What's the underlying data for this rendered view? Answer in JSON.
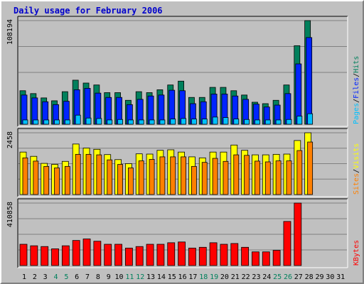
{
  "title": "Daily usage for February 2006",
  "colors": {
    "hits": "#00805c",
    "files": "#0024ff",
    "pages": "#00c0ff",
    "visits": "#ffff00",
    "sites": "#ff8000",
    "kbytes": "#ff0000",
    "weekend_label": "#00805c"
  },
  "chart_data": [
    {
      "type": "bar",
      "title": "Daily usage for February 2006",
      "ymax_label": "108194",
      "ylim": [
        0,
        108194
      ],
      "right_labels": [
        "Pages",
        "Files",
        "Hits"
      ],
      "categories": [
        "1",
        "2",
        "3",
        "4",
        "5",
        "6",
        "7",
        "8",
        "9",
        "10",
        "11",
        "12",
        "13",
        "14",
        "15",
        "16",
        "17",
        "18",
        "19",
        "20",
        "21",
        "22",
        "23",
        "24",
        "25",
        "26",
        "27",
        "28",
        "29",
        "30",
        "31"
      ],
      "series": [
        {
          "name": "Hits",
          "values": [
            35000,
            32000,
            27500,
            24500,
            34000,
            46000,
            43000,
            41000,
            33000,
            33000,
            25000,
            34000,
            33000,
            36000,
            41000,
            45000,
            28000,
            28000,
            38500,
            38500,
            35000,
            30500,
            23000,
            21500,
            25000,
            41000,
            82000,
            108194,
            0,
            0,
            0
          ]
        },
        {
          "name": "Files",
          "values": [
            30500,
            27500,
            23500,
            20500,
            24000,
            36000,
            37500,
            32500,
            28000,
            28000,
            20500,
            26000,
            29500,
            30500,
            35500,
            35000,
            21500,
            23500,
            31500,
            31500,
            29500,
            26000,
            21000,
            18000,
            20000,
            32000,
            63000,
            90500,
            0,
            0,
            0
          ]
        },
        {
          "name": "Pages",
          "values": [
            4500,
            4500,
            4500,
            4500,
            4500,
            9500,
            6500,
            6000,
            4500,
            5000,
            4500,
            4500,
            4500,
            4500,
            5500,
            6000,
            5500,
            5500,
            7500,
            7000,
            5500,
            5000,
            4500,
            4500,
            4500,
            5000,
            8500,
            11000,
            0,
            0,
            0
          ]
        }
      ]
    },
    {
      "type": "bar",
      "ymax_label": "2458",
      "ylim": [
        0,
        2458
      ],
      "right_labels": [
        "Sites",
        "Visits"
      ],
      "categories": [
        "1",
        "2",
        "3",
        "4",
        "5",
        "6",
        "7",
        "8",
        "9",
        "10",
        "11",
        "12",
        "13",
        "14",
        "15",
        "16",
        "17",
        "18",
        "19",
        "20",
        "21",
        "22",
        "23",
        "24",
        "25",
        "26",
        "27",
        "28",
        "29",
        "30",
        "31"
      ],
      "series": [
        {
          "name": "Visits",
          "values": [
            1690,
            1520,
            1240,
            1200,
            1320,
            2010,
            1850,
            1800,
            1590,
            1390,
            1230,
            1620,
            1610,
            1760,
            1780,
            1690,
            1500,
            1460,
            1690,
            1690,
            1970,
            1760,
            1580,
            1580,
            1600,
            1610,
            2150,
            2458,
            0,
            0,
            0
          ]
        },
        {
          "name": "Sites",
          "values": [
            1460,
            1330,
            1120,
            1060,
            1120,
            1600,
            1600,
            1580,
            1380,
            1200,
            1060,
            1340,
            1400,
            1500,
            1500,
            1500,
            1120,
            1280,
            1440,
            1320,
            1580,
            1560,
            1330,
            1300,
            1340,
            1340,
            1750,
            2090,
            0,
            0,
            0
          ]
        }
      ]
    },
    {
      "type": "bar",
      "ymax_label": "410858",
      "ylim": [
        0,
        410858
      ],
      "right_labels": [
        "KBytes"
      ],
      "categories": [
        "1",
        "2",
        "3",
        "4",
        "5",
        "6",
        "7",
        "8",
        "9",
        "10",
        "11",
        "12",
        "13",
        "14",
        "15",
        "16",
        "17",
        "18",
        "19",
        "20",
        "21",
        "22",
        "23",
        "24",
        "25",
        "26",
        "27",
        "28",
        "29",
        "30",
        "31"
      ],
      "series": [
        {
          "name": "KBytes",
          "values": [
            140000,
            130000,
            125000,
            110000,
            130000,
            165000,
            175000,
            160000,
            140000,
            140000,
            115000,
            125000,
            140000,
            140000,
            150000,
            155000,
            115000,
            120000,
            150000,
            140000,
            145000,
            120000,
            90000,
            90000,
            100000,
            290000,
            410858,
            0,
            0,
            0,
            0
          ]
        }
      ]
    }
  ],
  "weekend_days": [
    "4",
    "5",
    "11",
    "12",
    "18",
    "19",
    "25",
    "26"
  ]
}
